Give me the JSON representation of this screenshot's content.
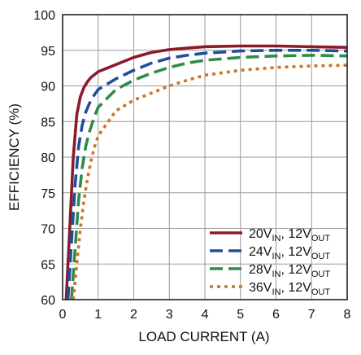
{
  "chart_data": {
    "type": "line",
    "title": "",
    "xlabel": "LOAD CURRENT (A)",
    "ylabel": "EFFICIENCY (%)",
    "xlim": [
      0,
      8
    ],
    "ylim": [
      60,
      100
    ],
    "xticks": [
      0,
      1,
      2,
      3,
      4,
      5,
      6,
      7,
      8
    ],
    "yticks": [
      60,
      65,
      70,
      75,
      80,
      85,
      90,
      95,
      100
    ],
    "grid": true,
    "legend_position": "bottom-right",
    "series": [
      {
        "name": "20VIN, 12VOUT",
        "legend": {
          "a": "20V",
          "a_sub": "IN",
          "b": ", 12V",
          "b_sub": "OUT"
        },
        "color": "#8b1a2b",
        "style": "solid",
        "x": [
          0.1,
          0.2,
          0.3,
          0.4,
          0.5,
          0.6,
          0.7,
          0.8,
          1.0,
          1.5,
          2.0,
          2.5,
          3.0,
          3.5,
          4.0,
          5.0,
          6.0,
          7.0,
          8.0
        ],
        "y": [
          60,
          70,
          80,
          86,
          88.5,
          89.8,
          90.6,
          91.2,
          92,
          93,
          94,
          94.7,
          95.1,
          95.3,
          95.5,
          95.6,
          95.6,
          95.5,
          95.4
        ]
      },
      {
        "name": "24VIN, 12VOUT",
        "legend": {
          "a": "24V",
          "a_sub": "IN",
          "b": ", 12V",
          "b_sub": "OUT"
        },
        "color": "#1f4ea1",
        "style": "dash",
        "x": [
          0.15,
          0.25,
          0.35,
          0.45,
          0.55,
          0.65,
          0.75,
          0.9,
          1.0,
          1.5,
          2.0,
          2.5,
          3.0,
          3.5,
          4.0,
          5.0,
          6.0,
          7.0,
          8.0
        ],
        "y": [
          60,
          68,
          76,
          81.5,
          84.5,
          86.3,
          87.5,
          88.8,
          89.5,
          91,
          92.2,
          93.2,
          93.9,
          94.3,
          94.6,
          94.9,
          95,
          95,
          94.9
        ]
      },
      {
        "name": "28VIN, 12VOUT",
        "legend": {
          "a": "28V",
          "a_sub": "IN",
          "b": ", 12V",
          "b_sub": "OUT"
        },
        "color": "#2e8b4a",
        "style": "dash",
        "x": [
          0.25,
          0.35,
          0.45,
          0.55,
          0.65,
          0.75,
          0.9,
          1.0,
          1.5,
          2.0,
          2.5,
          3.0,
          3.5,
          4.0,
          5.0,
          6.0,
          7.0,
          8.0
        ],
        "y": [
          60,
          67,
          74,
          78.5,
          81.5,
          83.5,
          85.8,
          87,
          89.5,
          90.8,
          91.8,
          92.6,
          93.2,
          93.6,
          94,
          94.2,
          94.3,
          94.2
        ]
      },
      {
        "name": "36VIN, 12VOUT",
        "legend": {
          "a": "36V",
          "a_sub": "IN",
          "b": ", 12V",
          "b_sub": "OUT"
        },
        "color": "#c8772a",
        "style": "dot",
        "x": [
          0.3,
          0.4,
          0.5,
          0.6,
          0.7,
          0.8,
          0.9,
          1.0,
          1.5,
          2.0,
          2.5,
          3.0,
          3.5,
          4.0,
          5.0,
          6.0,
          7.0,
          8.0
        ],
        "y": [
          60,
          65,
          70,
          74,
          77,
          79.5,
          81.5,
          83,
          86.5,
          88,
          89,
          90,
          90.8,
          91.5,
          92.2,
          92.6,
          92.8,
          92.9
        ]
      }
    ]
  }
}
